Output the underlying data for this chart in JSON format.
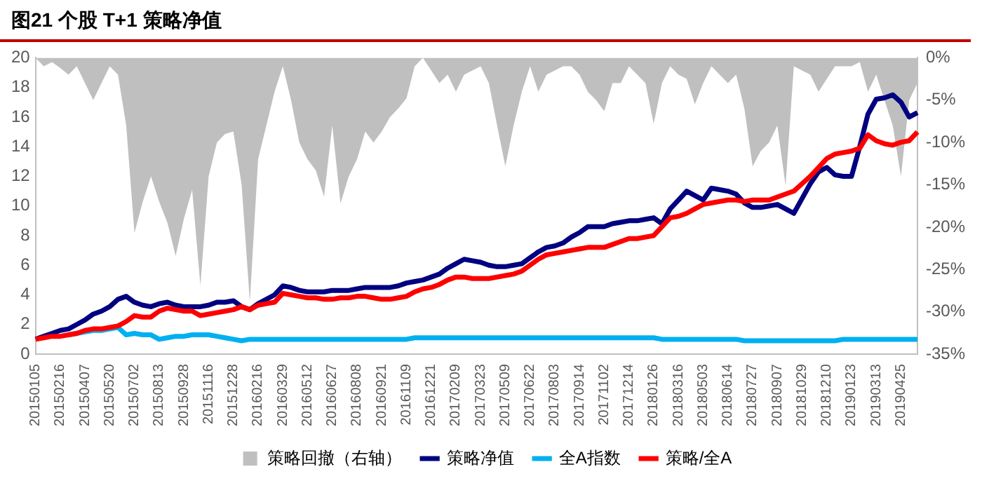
{
  "chart_data": {
    "type": "line",
    "title": "图21 个股 T+1 策略净值",
    "categories": [
      "20150105",
      null,
      null,
      "20150216",
      null,
      null,
      "20150407",
      null,
      null,
      "20150520",
      null,
      null,
      "20150702",
      null,
      null,
      "20150813",
      null,
      null,
      "20150928",
      null,
      null,
      "20151116",
      null,
      null,
      "20151228",
      null,
      null,
      "20160216",
      null,
      null,
      "20160329",
      null,
      null,
      "20160512",
      null,
      null,
      "20160627",
      null,
      null,
      "20160808",
      null,
      null,
      "20160921",
      null,
      null,
      "20161109",
      null,
      null,
      "20161221",
      null,
      null,
      "20170209",
      null,
      null,
      "20170323",
      null,
      null,
      "20170509",
      null,
      null,
      "20170622",
      null,
      null,
      "20170803",
      null,
      null,
      "20170914",
      null,
      null,
      "20171102",
      null,
      null,
      "20171214",
      null,
      null,
      "20180126",
      null,
      null,
      "20180316",
      null,
      null,
      "20180503",
      null,
      null,
      "20180614",
      null,
      null,
      "20180727",
      null,
      null,
      "20180907",
      null,
      null,
      "20181029",
      null,
      null,
      "20181210",
      null,
      null,
      "20190123",
      null,
      null,
      "20190313",
      null,
      null,
      "20190425",
      null,
      null
    ],
    "series": [
      {
        "name": "策略回撤（右轴）",
        "type": "area",
        "axis": "y2",
        "color": "#bfbfbf",
        "values": [
          0,
          -1,
          -0.5,
          -1.2,
          -2,
          -1,
          -3,
          -5,
          -3,
          -1,
          -2,
          -8,
          -20.7,
          -17,
          -14,
          -17,
          -19.5,
          -23.4,
          -19,
          -15.6,
          -26.9,
          -14,
          -10,
          -9,
          -8.7,
          -15,
          -28.8,
          -12,
          -8,
          -4,
          -1,
          -5,
          -10,
          -12,
          -13.3,
          -16.4,
          -8,
          -17.2,
          -14,
          -12,
          -8.7,
          -10,
          -8.7,
          -7,
          -6,
          -4.8,
          -1,
          0,
          -1.5,
          -3,
          -2,
          -4,
          -2,
          -1.5,
          -1,
          -3,
          -8,
          -12.8,
          -8,
          -4,
          -1,
          -4,
          -2,
          -1.5,
          -1,
          -1,
          -2,
          -4,
          -5,
          -6.3,
          -3,
          -3,
          -1,
          -2,
          -3,
          -7.8,
          -3,
          -1,
          -2,
          -2.5,
          -5.5,
          -3,
          -1,
          -2,
          -3,
          -2,
          -6,
          -12.8,
          -11,
          -10,
          -8,
          -15.1,
          -1,
          -1.5,
          -2,
          -4,
          -2.5,
          -1,
          -1,
          -1,
          -0.5,
          -4,
          -2,
          -5,
          -8,
          -14,
          -5,
          -3
        ]
      },
      {
        "name": "策略净值",
        "type": "line",
        "color": "#000080",
        "values": [
          1.0,
          1.2,
          1.4,
          1.6,
          1.7,
          2.0,
          2.3,
          2.7,
          2.9,
          3.2,
          3.7,
          3.9,
          3.5,
          3.3,
          3.2,
          3.4,
          3.5,
          3.3,
          3.2,
          3.2,
          3.2,
          3.3,
          3.5,
          3.5,
          3.6,
          3.2,
          3.0,
          3.4,
          3.7,
          4.0,
          4.6,
          4.5,
          4.3,
          4.2,
          4.2,
          4.2,
          4.3,
          4.3,
          4.3,
          4.4,
          4.5,
          4.5,
          4.5,
          4.5,
          4.6,
          4.8,
          4.9,
          5.0,
          5.2,
          5.4,
          5.8,
          6.1,
          6.4,
          6.3,
          6.2,
          6.0,
          5.9,
          5.9,
          6.0,
          6.1,
          6.5,
          6.9,
          7.2,
          7.3,
          7.5,
          7.9,
          8.2,
          8.6,
          8.6,
          8.6,
          8.8,
          8.9,
          9.0,
          9.0,
          9.1,
          9.2,
          8.8,
          9.8,
          10.4,
          11.0,
          10.7,
          10.4,
          11.2,
          11.1,
          11.0,
          10.8,
          10.2,
          9.9,
          9.9,
          10.0,
          10.1,
          9.8,
          9.5,
          10.5,
          11.5,
          12.3,
          12.6,
          12.1,
          12.0,
          12.0,
          14.0,
          16.2,
          17.2,
          17.3,
          17.5,
          17.0,
          16.0,
          16.3
        ]
      },
      {
        "name": "全A指数",
        "type": "line",
        "color": "#00b0f0",
        "values": [
          null,
          null,
          null,
          null,
          1.3,
          1.4,
          1.5,
          1.6,
          1.6,
          1.7,
          1.8,
          1.3,
          1.4,
          1.3,
          1.3,
          1.0,
          1.1,
          1.2,
          1.2,
          1.3,
          1.3,
          1.3,
          1.2,
          1.1,
          1.0,
          0.9,
          1.0,
          1.0,
          1.0,
          1.0,
          1.0,
          1.0,
          1.0,
          1.0,
          1.0,
          1.0,
          1.0,
          1.0,
          1.0,
          1.0,
          1.0,
          1.0,
          1.0,
          1.0,
          1.0,
          1.0,
          1.1,
          1.1,
          1.1,
          1.1,
          1.1,
          1.1,
          1.1,
          1.1,
          1.1,
          1.1,
          1.1,
          1.1,
          1.1,
          1.1,
          1.1,
          1.1,
          1.1,
          1.1,
          1.1,
          1.1,
          1.1,
          1.1,
          1.1,
          1.1,
          1.1,
          1.1,
          1.1,
          1.1,
          1.1,
          1.1,
          1.0,
          1.0,
          1.0,
          1.0,
          1.0,
          1.0,
          1.0,
          1.0,
          1.0,
          1.0,
          0.9,
          0.9,
          0.9,
          0.9,
          0.9,
          0.9,
          0.9,
          0.9,
          0.9,
          0.9,
          0.9,
          0.9,
          1.0,
          1.0,
          1.0,
          1.0,
          1.0,
          1.0,
          1.0,
          1.0,
          1.0,
          1.0
        ]
      },
      {
        "name": "策略/全A",
        "type": "line",
        "color": "#ff0000",
        "values": [
          1.0,
          1.1,
          1.2,
          1.2,
          1.3,
          1.4,
          1.6,
          1.7,
          1.7,
          1.8,
          1.9,
          2.2,
          2.6,
          2.5,
          2.5,
          2.9,
          3.1,
          3.0,
          2.9,
          2.9,
          2.6,
          2.7,
          2.8,
          2.9,
          3.0,
          3.2,
          3.0,
          3.3,
          3.4,
          3.5,
          4.1,
          4.0,
          3.9,
          3.8,
          3.8,
          3.7,
          3.7,
          3.8,
          3.8,
          3.9,
          3.9,
          3.8,
          3.7,
          3.7,
          3.8,
          3.9,
          4.2,
          4.4,
          4.5,
          4.7,
          5.0,
          5.2,
          5.2,
          5.1,
          5.1,
          5.1,
          5.2,
          5.3,
          5.4,
          5.6,
          6.0,
          6.4,
          6.7,
          6.8,
          6.9,
          7.0,
          7.1,
          7.2,
          7.2,
          7.2,
          7.4,
          7.6,
          7.8,
          7.8,
          7.9,
          8.0,
          8.6,
          9.2,
          9.3,
          9.5,
          9.8,
          10.1,
          10.2,
          10.3,
          10.4,
          10.4,
          10.3,
          10.4,
          10.4,
          10.4,
          10.6,
          10.8,
          11.0,
          11.5,
          12.0,
          12.6,
          13.2,
          13.5,
          13.6,
          13.7,
          13.9,
          14.8,
          14.4,
          14.2,
          14.1,
          14.3,
          14.4,
          15.0
        ]
      }
    ],
    "ylim": [
      0,
      20
    ],
    "yticks": [
      0,
      2,
      4,
      6,
      8,
      10,
      12,
      14,
      16,
      18,
      20
    ],
    "y2lim": [
      -35,
      0
    ],
    "y2ticks": [
      {
        "value": 0,
        "label": "0%"
      },
      {
        "value": -5,
        "label": "-5%"
      },
      {
        "value": -10,
        "label": "-10%"
      },
      {
        "value": -15,
        "label": "-15%"
      },
      {
        "value": -20,
        "label": "-20%"
      },
      {
        "value": -25,
        "label": "-25%"
      },
      {
        "value": -30,
        "label": "-30%"
      },
      {
        "value": -35,
        "label": "-35%"
      }
    ],
    "grid": false,
    "legend": "bottom",
    "marker": "none",
    "line_style": "solid"
  }
}
